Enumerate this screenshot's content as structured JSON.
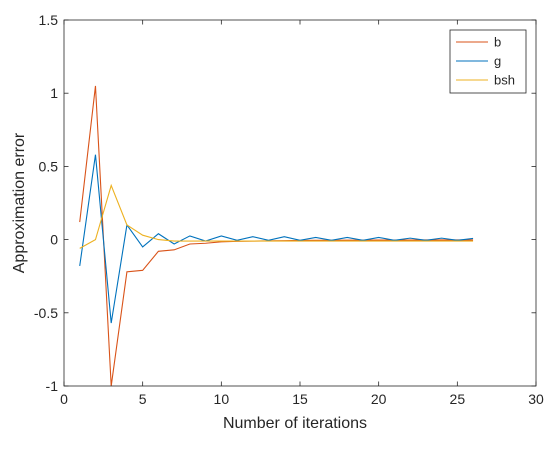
{
  "chart_data": {
    "type": "line",
    "title": "",
    "xlabel": "Number of iterations",
    "ylabel": "Approximation error",
    "xlim": [
      0,
      30
    ],
    "ylim": [
      -1,
      1.5
    ],
    "xticks": [
      0,
      5,
      10,
      15,
      20,
      25,
      30
    ],
    "yticks": [
      -1,
      -0.5,
      0,
      0.5,
      1,
      1.5
    ],
    "xtick_labels": [
      "0",
      "5",
      "10",
      "15",
      "20",
      "25",
      "30"
    ],
    "ytick_labels": [
      "-1",
      "-0.5",
      "0",
      "0.5",
      "1",
      "1.5"
    ],
    "grid": false,
    "legend_position": "top-right",
    "series": [
      {
        "name": "b",
        "color": "#d95319",
        "x": [
          1,
          2,
          3,
          4,
          5,
          6,
          7,
          8,
          9,
          10,
          11,
          12,
          13,
          14,
          15,
          16,
          17,
          18,
          19,
          20,
          21,
          22,
          23,
          24,
          25,
          26
        ],
        "values": [
          0.12,
          1.05,
          -1.0,
          -0.22,
          -0.21,
          -0.08,
          -0.07,
          -0.03,
          -0.025,
          -0.015,
          -0.012,
          -0.01,
          -0.008,
          -0.007,
          -0.006,
          -0.005,
          -0.005,
          -0.004,
          -0.004,
          -0.003,
          -0.003,
          -0.003,
          -0.002,
          -0.002,
          -0.002,
          -0.002
        ]
      },
      {
        "name": "g",
        "color": "#0072bd",
        "x": [
          1,
          2,
          3,
          4,
          5,
          6,
          7,
          8,
          9,
          10,
          11,
          12,
          13,
          14,
          15,
          16,
          17,
          18,
          19,
          20,
          21,
          22,
          23,
          24,
          25,
          26
        ],
        "values": [
          -0.18,
          0.58,
          -0.57,
          0.1,
          -0.05,
          0.04,
          -0.03,
          0.025,
          -0.01,
          0.025,
          -0.005,
          0.02,
          -0.005,
          0.02,
          -0.005,
          0.015,
          -0.005,
          0.015,
          -0.005,
          0.015,
          -0.005,
          0.01,
          -0.005,
          0.01,
          -0.005,
          0.008
        ]
      },
      {
        "name": "bsh",
        "color": "#edb120",
        "x": [
          1,
          2,
          3,
          4,
          5,
          6,
          7,
          8,
          9,
          10,
          11,
          12,
          13,
          14,
          15,
          16,
          17,
          18,
          19,
          20,
          21,
          22,
          23,
          24,
          25,
          26
        ],
        "values": [
          -0.06,
          0.0,
          0.37,
          0.1,
          0.03,
          0.0,
          -0.01,
          -0.01,
          -0.01,
          -0.01,
          -0.01,
          -0.01,
          -0.01,
          -0.01,
          -0.01,
          -0.01,
          -0.01,
          -0.01,
          -0.01,
          -0.01,
          -0.01,
          -0.01,
          -0.01,
          -0.01,
          -0.01,
          -0.01
        ]
      }
    ]
  }
}
